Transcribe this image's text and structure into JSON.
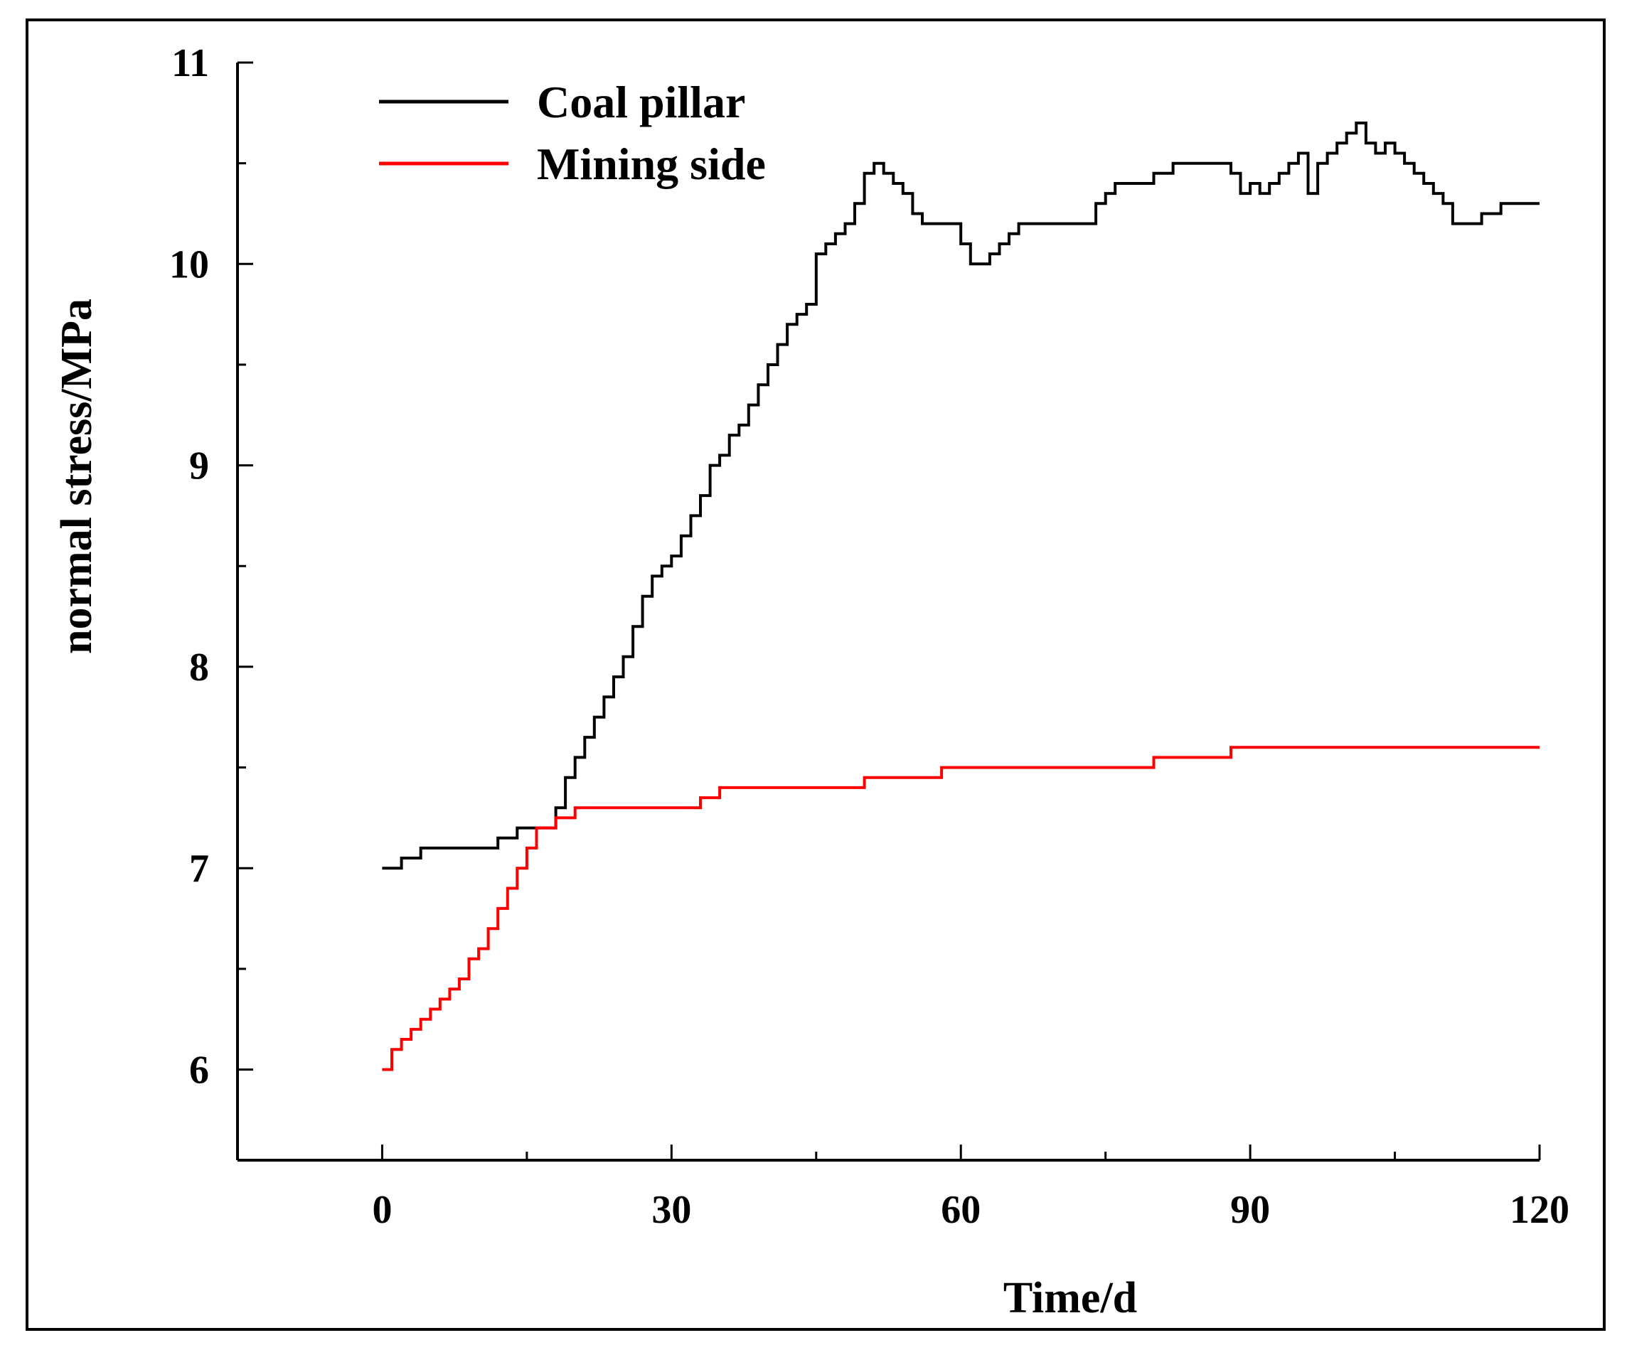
{
  "chart_data": {
    "type": "line",
    "title": "",
    "xlabel": "Time/d",
    "ylabel": "normal stress/MPa",
    "xlim": [
      -15,
      120
    ],
    "ylim": [
      5.55,
      11
    ],
    "xticks": [
      0,
      30,
      60,
      90,
      120
    ],
    "xtick_labels": [
      "0",
      "30",
      "60",
      "90",
      "120"
    ],
    "yticks": [
      6,
      7,
      8,
      9,
      10,
      11
    ],
    "ytick_labels": [
      "6",
      "7",
      "8",
      "9",
      "10",
      "11"
    ],
    "grid": false,
    "legend_position": "top-left",
    "series": [
      {
        "name": "Coal pillar",
        "color": "#000000",
        "x": [
          0,
          2,
          4,
          5,
          10,
          12,
          14,
          16,
          18,
          19,
          20,
          21,
          22,
          23,
          24,
          25,
          26,
          27,
          28,
          29,
          30,
          31,
          32,
          33,
          34,
          35,
          36,
          37,
          38,
          39,
          40,
          41,
          42,
          43,
          44,
          45,
          46,
          47,
          48,
          49,
          50,
          51,
          52,
          53,
          54,
          55,
          56,
          57,
          58,
          60,
          61,
          62,
          63,
          64,
          65,
          66,
          67,
          70,
          73,
          74,
          75,
          76,
          78,
          80,
          82,
          85,
          88,
          89,
          90,
          91,
          92,
          93,
          94,
          95,
          96,
          97,
          98,
          99,
          100,
          101,
          102,
          103,
          104,
          105,
          106,
          107,
          108,
          109,
          110,
          111,
          112,
          114,
          116,
          120
        ],
        "values": [
          7.0,
          7.05,
          7.1,
          7.1,
          7.1,
          7.15,
          7.2,
          7.2,
          7.3,
          7.45,
          7.55,
          7.65,
          7.75,
          7.85,
          7.95,
          8.05,
          8.2,
          8.35,
          8.45,
          8.5,
          8.55,
          8.65,
          8.75,
          8.85,
          9.0,
          9.05,
          9.15,
          9.2,
          9.3,
          9.4,
          9.5,
          9.6,
          9.7,
          9.75,
          9.8,
          10.05,
          10.1,
          10.15,
          10.2,
          10.3,
          10.45,
          10.5,
          10.45,
          10.4,
          10.35,
          10.25,
          10.2,
          10.2,
          10.2,
          10.1,
          10.0,
          10.0,
          10.05,
          10.1,
          10.15,
          10.2,
          10.2,
          10.2,
          10.2,
          10.3,
          10.35,
          10.4,
          10.4,
          10.45,
          10.5,
          10.5,
          10.45,
          10.35,
          10.4,
          10.35,
          10.4,
          10.45,
          10.5,
          10.55,
          10.35,
          10.5,
          10.55,
          10.6,
          10.65,
          10.7,
          10.6,
          10.55,
          10.6,
          10.55,
          10.5,
          10.45,
          10.4,
          10.35,
          10.3,
          10.2,
          10.2,
          10.25,
          10.3,
          10.3
        ]
      },
      {
        "name": "Mining side",
        "color": "#ff0000",
        "x": [
          0,
          1,
          2,
          3,
          4,
          5,
          6,
          7,
          8,
          9,
          10,
          11,
          12,
          13,
          14,
          15,
          16,
          17,
          18,
          19,
          20,
          25,
          30,
          33,
          34,
          35,
          40,
          45,
          50,
          52,
          55,
          58,
          60,
          65,
          70,
          75,
          80,
          82,
          85,
          88,
          90,
          100,
          110,
          120
        ],
        "values": [
          6.0,
          6.1,
          6.15,
          6.2,
          6.25,
          6.3,
          6.35,
          6.4,
          6.45,
          6.55,
          6.6,
          6.7,
          6.8,
          6.9,
          7.0,
          7.1,
          7.2,
          7.2,
          7.25,
          7.25,
          7.3,
          7.3,
          7.3,
          7.35,
          7.35,
          7.4,
          7.4,
          7.4,
          7.45,
          7.45,
          7.45,
          7.5,
          7.5,
          7.5,
          7.5,
          7.5,
          7.55,
          7.55,
          7.55,
          7.6,
          7.6,
          7.6,
          7.6,
          7.6
        ]
      }
    ]
  }
}
